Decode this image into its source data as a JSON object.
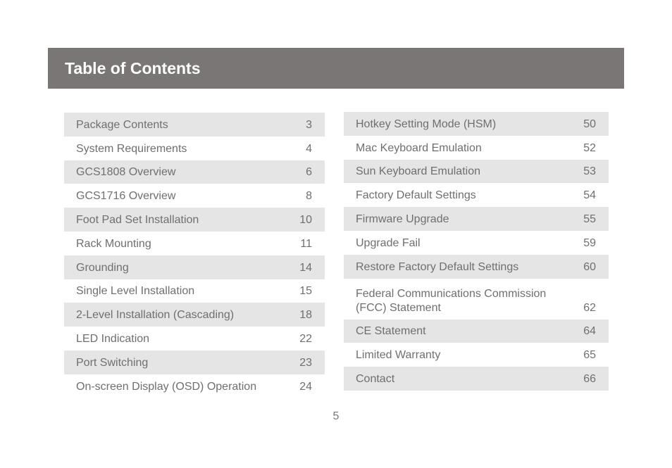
{
  "header": {
    "title": "Table of Contents"
  },
  "toc": {
    "left": [
      {
        "label": "Package Contents",
        "page": "3"
      },
      {
        "label": "System Requirements",
        "page": "4"
      },
      {
        "label": "GCS1808 Overview",
        "page": "6"
      },
      {
        "label": "GCS1716 Overview",
        "page": "8"
      },
      {
        "label": "Foot Pad Set Installation",
        "page": "10"
      },
      {
        "label": "Rack Mounting",
        "page": "11"
      },
      {
        "label": "Grounding",
        "page": "14"
      },
      {
        "label": "Single Level Installation",
        "page": "15"
      },
      {
        "label": "2-Level Installation (Cascading)",
        "page": "18"
      },
      {
        "label": "LED Indication",
        "page": "22"
      },
      {
        "label": "Port Switching",
        "page": "23"
      },
      {
        "label": "On-screen Display (OSD) Operation",
        "page": "24"
      }
    ],
    "right": [
      {
        "label": "Hotkey Setting Mode (HSM)",
        "page": "50"
      },
      {
        "label": "Mac Keyboard Emulation",
        "page": "52"
      },
      {
        "label": "Sun Keyboard Emulation",
        "page": "53"
      },
      {
        "label": "Factory Default Settings",
        "page": "54"
      },
      {
        "label": "Firmware Upgrade",
        "page": "55"
      },
      {
        "label": "Upgrade Fail",
        "page": "59"
      },
      {
        "label": "Restore Factory Default Settings",
        "page": "60"
      },
      {
        "label_line1": "Federal Communications Commission",
        "label_line2": "(FCC) Statement",
        "page": "62"
      },
      {
        "label": "CE Statement",
        "page": "64"
      },
      {
        "label": "Limited Warranty",
        "page": "65"
      },
      {
        "label": "Contact",
        "page": "66"
      }
    ]
  },
  "footer": {
    "page_number": "5"
  }
}
